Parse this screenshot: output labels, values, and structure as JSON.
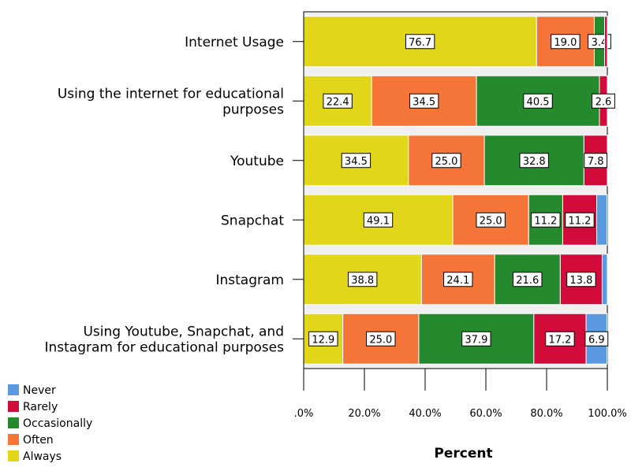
{
  "chart_data": {
    "type": "bar",
    "orientation": "horizontal",
    "stacked": true,
    "xlabel": "Percent",
    "xlim": [
      0,
      100
    ],
    "x_ticks": [
      ".0%",
      "20.0%",
      "40.0%",
      "60.0%",
      "80.0%",
      "100.0%"
    ],
    "grid": false,
    "legend_placement": "bottom-left",
    "categories": [
      [
        "Internet Usage"
      ],
      [
        "Using the internet for educational",
        "purposes"
      ],
      [
        "Youtube"
      ],
      [
        "Snapchat"
      ],
      [
        "Instagram"
      ],
      [
        "Using Youtube, Snapchat, and",
        "Instagram for educational purposes"
      ]
    ],
    "series": [
      {
        "name": "Always",
        "color": "#e1d61a",
        "values": [
          76.7,
          22.4,
          34.5,
          49.1,
          38.8,
          12.9
        ]
      },
      {
        "name": "Often",
        "color": "#f47537",
        "values": [
          19.0,
          34.5,
          25.0,
          25.0,
          24.1,
          25.0
        ]
      },
      {
        "name": "Occasionally",
        "color": "#258a2d",
        "values": [
          3.4,
          40.5,
          32.8,
          11.2,
          21.6,
          37.9
        ]
      },
      {
        "name": "Rarely",
        "color": "#d10c3a",
        "values": [
          0.9,
          2.6,
          7.8,
          11.2,
          13.8,
          17.2
        ]
      },
      {
        "name": "Never",
        "color": "#5a98e0",
        "values": [
          0,
          0,
          0,
          3.4,
          1.7,
          6.9
        ]
      }
    ],
    "shown_labels": [
      [
        "76.7",
        "19.0",
        "3.4",
        null,
        null
      ],
      [
        "22.4",
        "34.5",
        "40.5",
        "2.6",
        null
      ],
      [
        "34.5",
        "25.0",
        "32.8",
        "7.8",
        null
      ],
      [
        "49.1",
        "25.0",
        "11.2",
        "11.2",
        null
      ],
      [
        "38.8",
        "24.1",
        "21.6",
        "13.8",
        null
      ],
      [
        "12.9",
        "25.0",
        "37.9",
        "17.2",
        "6.9"
      ]
    ],
    "legend_order": [
      "Never",
      "Rarely",
      "Occasionally",
      "Often",
      "Always"
    ],
    "colors": {
      "plot_background": "#f0f0f0",
      "bar_edge": "#ffffff"
    }
  }
}
